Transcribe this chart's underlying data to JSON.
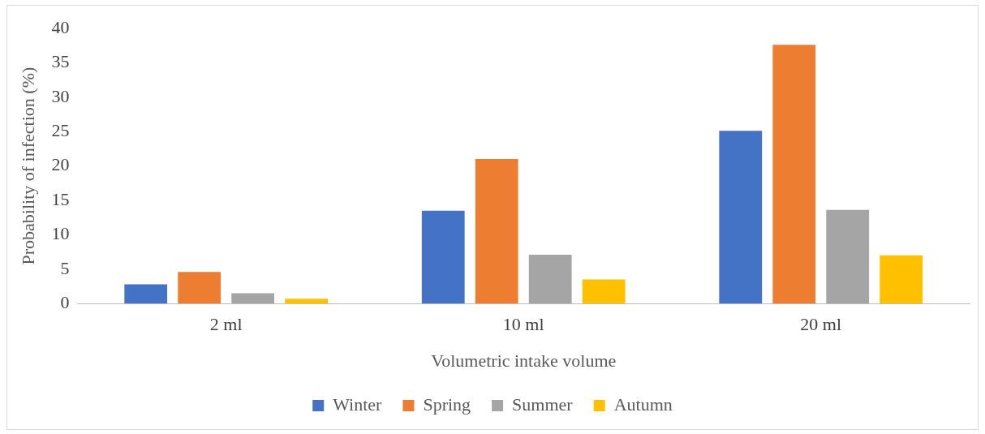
{
  "chart_data": {
    "type": "bar",
    "xlabel": "Volumetric intake volume",
    "ylabel": "Probability of infection (%)",
    "categories": [
      "2 ml",
      "10 ml",
      "20 ml"
    ],
    "series": [
      {
        "name": "Winter",
        "color": "#4472c4",
        "values": [
          2.8,
          13.5,
          25.1
        ]
      },
      {
        "name": "Spring",
        "color": "#ed7d31",
        "values": [
          4.6,
          21.0,
          37.6
        ]
      },
      {
        "name": "Summer",
        "color": "#a5a5a5",
        "values": [
          1.5,
          7.1,
          13.6
        ]
      },
      {
        "name": "Autumn",
        "color": "#ffc000",
        "values": [
          0.7,
          3.5,
          7.0
        ]
      }
    ],
    "ylim": [
      0,
      40
    ],
    "yticks": [
      0,
      5,
      10,
      15,
      20,
      25,
      30,
      35,
      40
    ],
    "grid": false,
    "legend": "bottom"
  }
}
